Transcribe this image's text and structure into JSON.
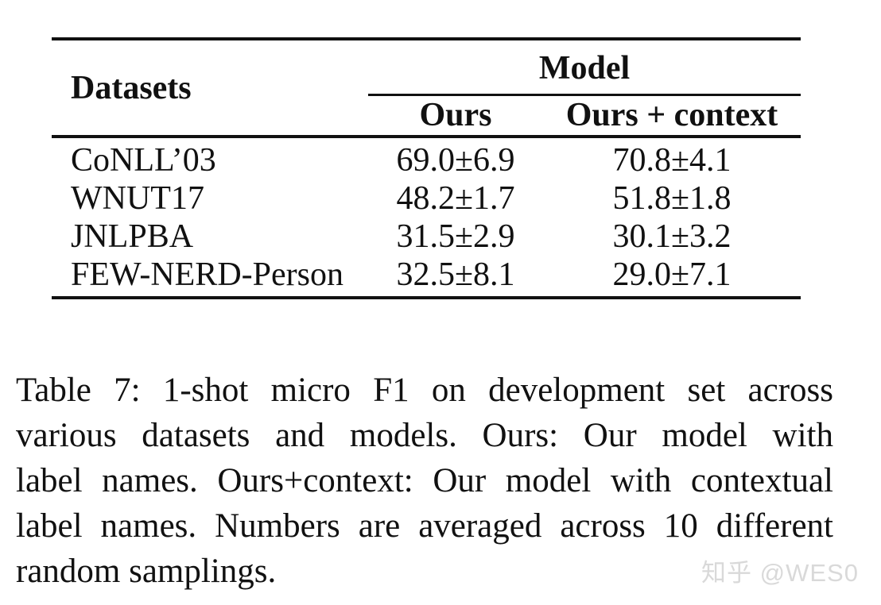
{
  "table": {
    "datasets_header": "Datasets",
    "group_header": "Model",
    "sub_headers": {
      "ours": "Ours",
      "ours_context": "Ours + context"
    },
    "rows": [
      {
        "dataset": "CoNLL’03",
        "ours": "69.0±6.9",
        "ours_context": "70.8±4.1"
      },
      {
        "dataset": "WNUT17",
        "ours": "48.2±1.7",
        "ours_context": "51.8±1.8"
      },
      {
        "dataset": "JNLPBA",
        "ours": "31.5±2.9",
        "ours_context": "30.1±3.2"
      },
      {
        "dataset": "FEW-NERD-Person",
        "ours": "32.5±8.1",
        "ours_context": "29.0±7.1"
      }
    ]
  },
  "caption": {
    "lines": [
      "Table 7: 1-shot micro F1 on development set across",
      "various datasets and models. Ours: Our model with",
      "label names. Ours+context: Our model with contextual",
      "label names. Numbers are averaged across 10 different",
      "random samplings."
    ],
    "full_text": "Table 7: 1-shot micro F1 on development set across various datasets and models. Ours: Our model with label names. Ours+context: Our model with contextual label names. Numbers are averaged across 10 different random samplings."
  },
  "watermark": {
    "text": "知乎 @WES0"
  },
  "colors": {
    "background": "#ffffff",
    "text": "#111111",
    "rule": "#111111",
    "watermark": "#d9d9d9"
  }
}
